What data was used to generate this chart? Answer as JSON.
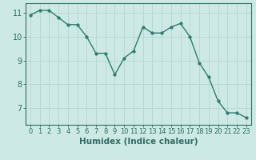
{
  "x": [
    0,
    1,
    2,
    3,
    4,
    5,
    6,
    7,
    8,
    9,
    10,
    11,
    12,
    13,
    14,
    15,
    16,
    17,
    18,
    19,
    20,
    21,
    22,
    23
  ],
  "y": [
    10.9,
    11.1,
    11.1,
    10.8,
    10.5,
    10.5,
    10.0,
    9.3,
    9.3,
    8.4,
    9.1,
    9.4,
    10.4,
    10.15,
    10.15,
    10.4,
    10.55,
    10.0,
    8.9,
    8.3,
    7.3,
    6.8,
    6.8,
    6.6
  ],
  "line_color": "#2e7d6e",
  "marker": "o",
  "marker_size": 2.5,
  "background_color": "#cce9e5",
  "grid_color": "#b8d8d4",
  "xlabel": "Humidex (Indice chaleur)",
  "ylim": [
    6.3,
    11.4
  ],
  "xlim": [
    -0.5,
    23.5
  ],
  "yticks": [
    7,
    8,
    9,
    10,
    11
  ],
  "xticks": [
    0,
    1,
    2,
    3,
    4,
    5,
    6,
    7,
    8,
    9,
    10,
    11,
    12,
    13,
    14,
    15,
    16,
    17,
    18,
    19,
    20,
    21,
    22,
    23
  ],
  "tick_color": "#2e6e62",
  "label_color": "#2e6e62",
  "axis_color": "#2e6e62",
  "xlabel_fontsize": 7.5,
  "ytick_fontsize": 7,
  "xtick_fontsize": 6
}
